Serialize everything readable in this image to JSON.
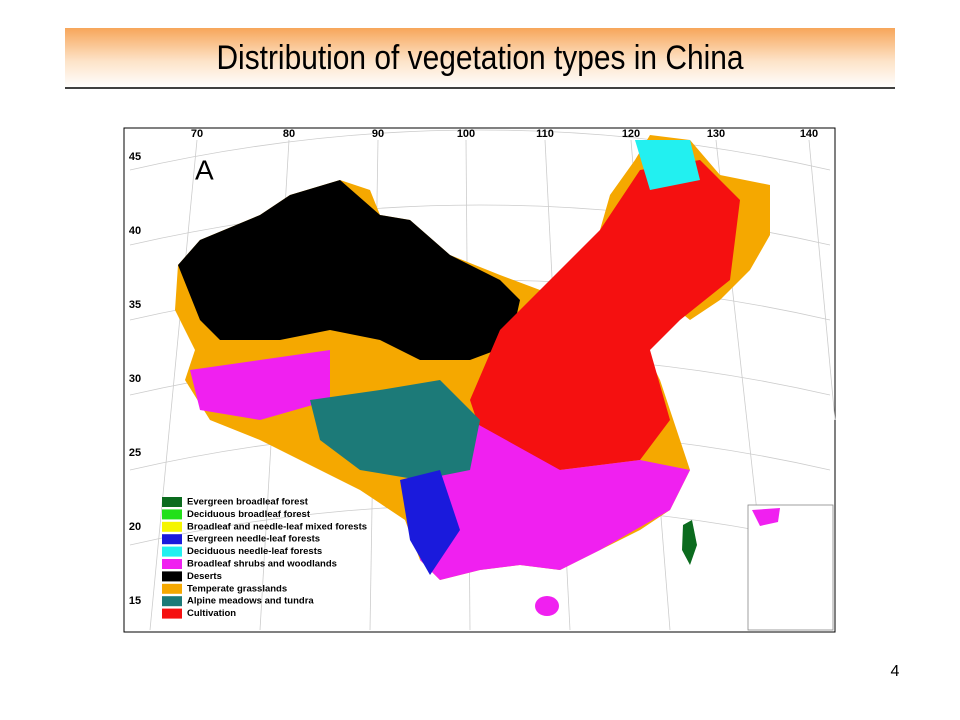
{
  "header": {
    "title": "Distribution of vegetation types in China"
  },
  "map": {
    "panel_label": "A",
    "longitude_labels": [
      "70",
      "80",
      "90",
      "100",
      "110",
      "120",
      "130",
      "140"
    ],
    "latitude_labels": [
      "45",
      "40",
      "35",
      "30",
      "25",
      "20",
      "15"
    ],
    "legend": [
      {
        "label": "Evergreen broadleaf forest",
        "color": "#0b6b1e"
      },
      {
        "label": "Deciduous broadleaf forest",
        "color": "#22e01a"
      },
      {
        "label": "Broadleaf and needle-leaf mixed forests",
        "color": "#f5f500"
      },
      {
        "label": "Evergreen needle-leaf forests",
        "color": "#1a1adc"
      },
      {
        "label": "Deciduous needle-leaf forests",
        "color": "#22f0f0"
      },
      {
        "label": "Broadleaf shrubs and woodlands",
        "color": "#f020f0"
      },
      {
        "label": "Deserts",
        "color": "#000000"
      },
      {
        "label": "Temperate grasslands",
        "color": "#f5a800"
      },
      {
        "label": "Alpine meadows and tundra",
        "color": "#1c7a78"
      },
      {
        "label": "Cultivation",
        "color": "#f51010"
      }
    ]
  },
  "footer": {
    "page_number": "4"
  }
}
